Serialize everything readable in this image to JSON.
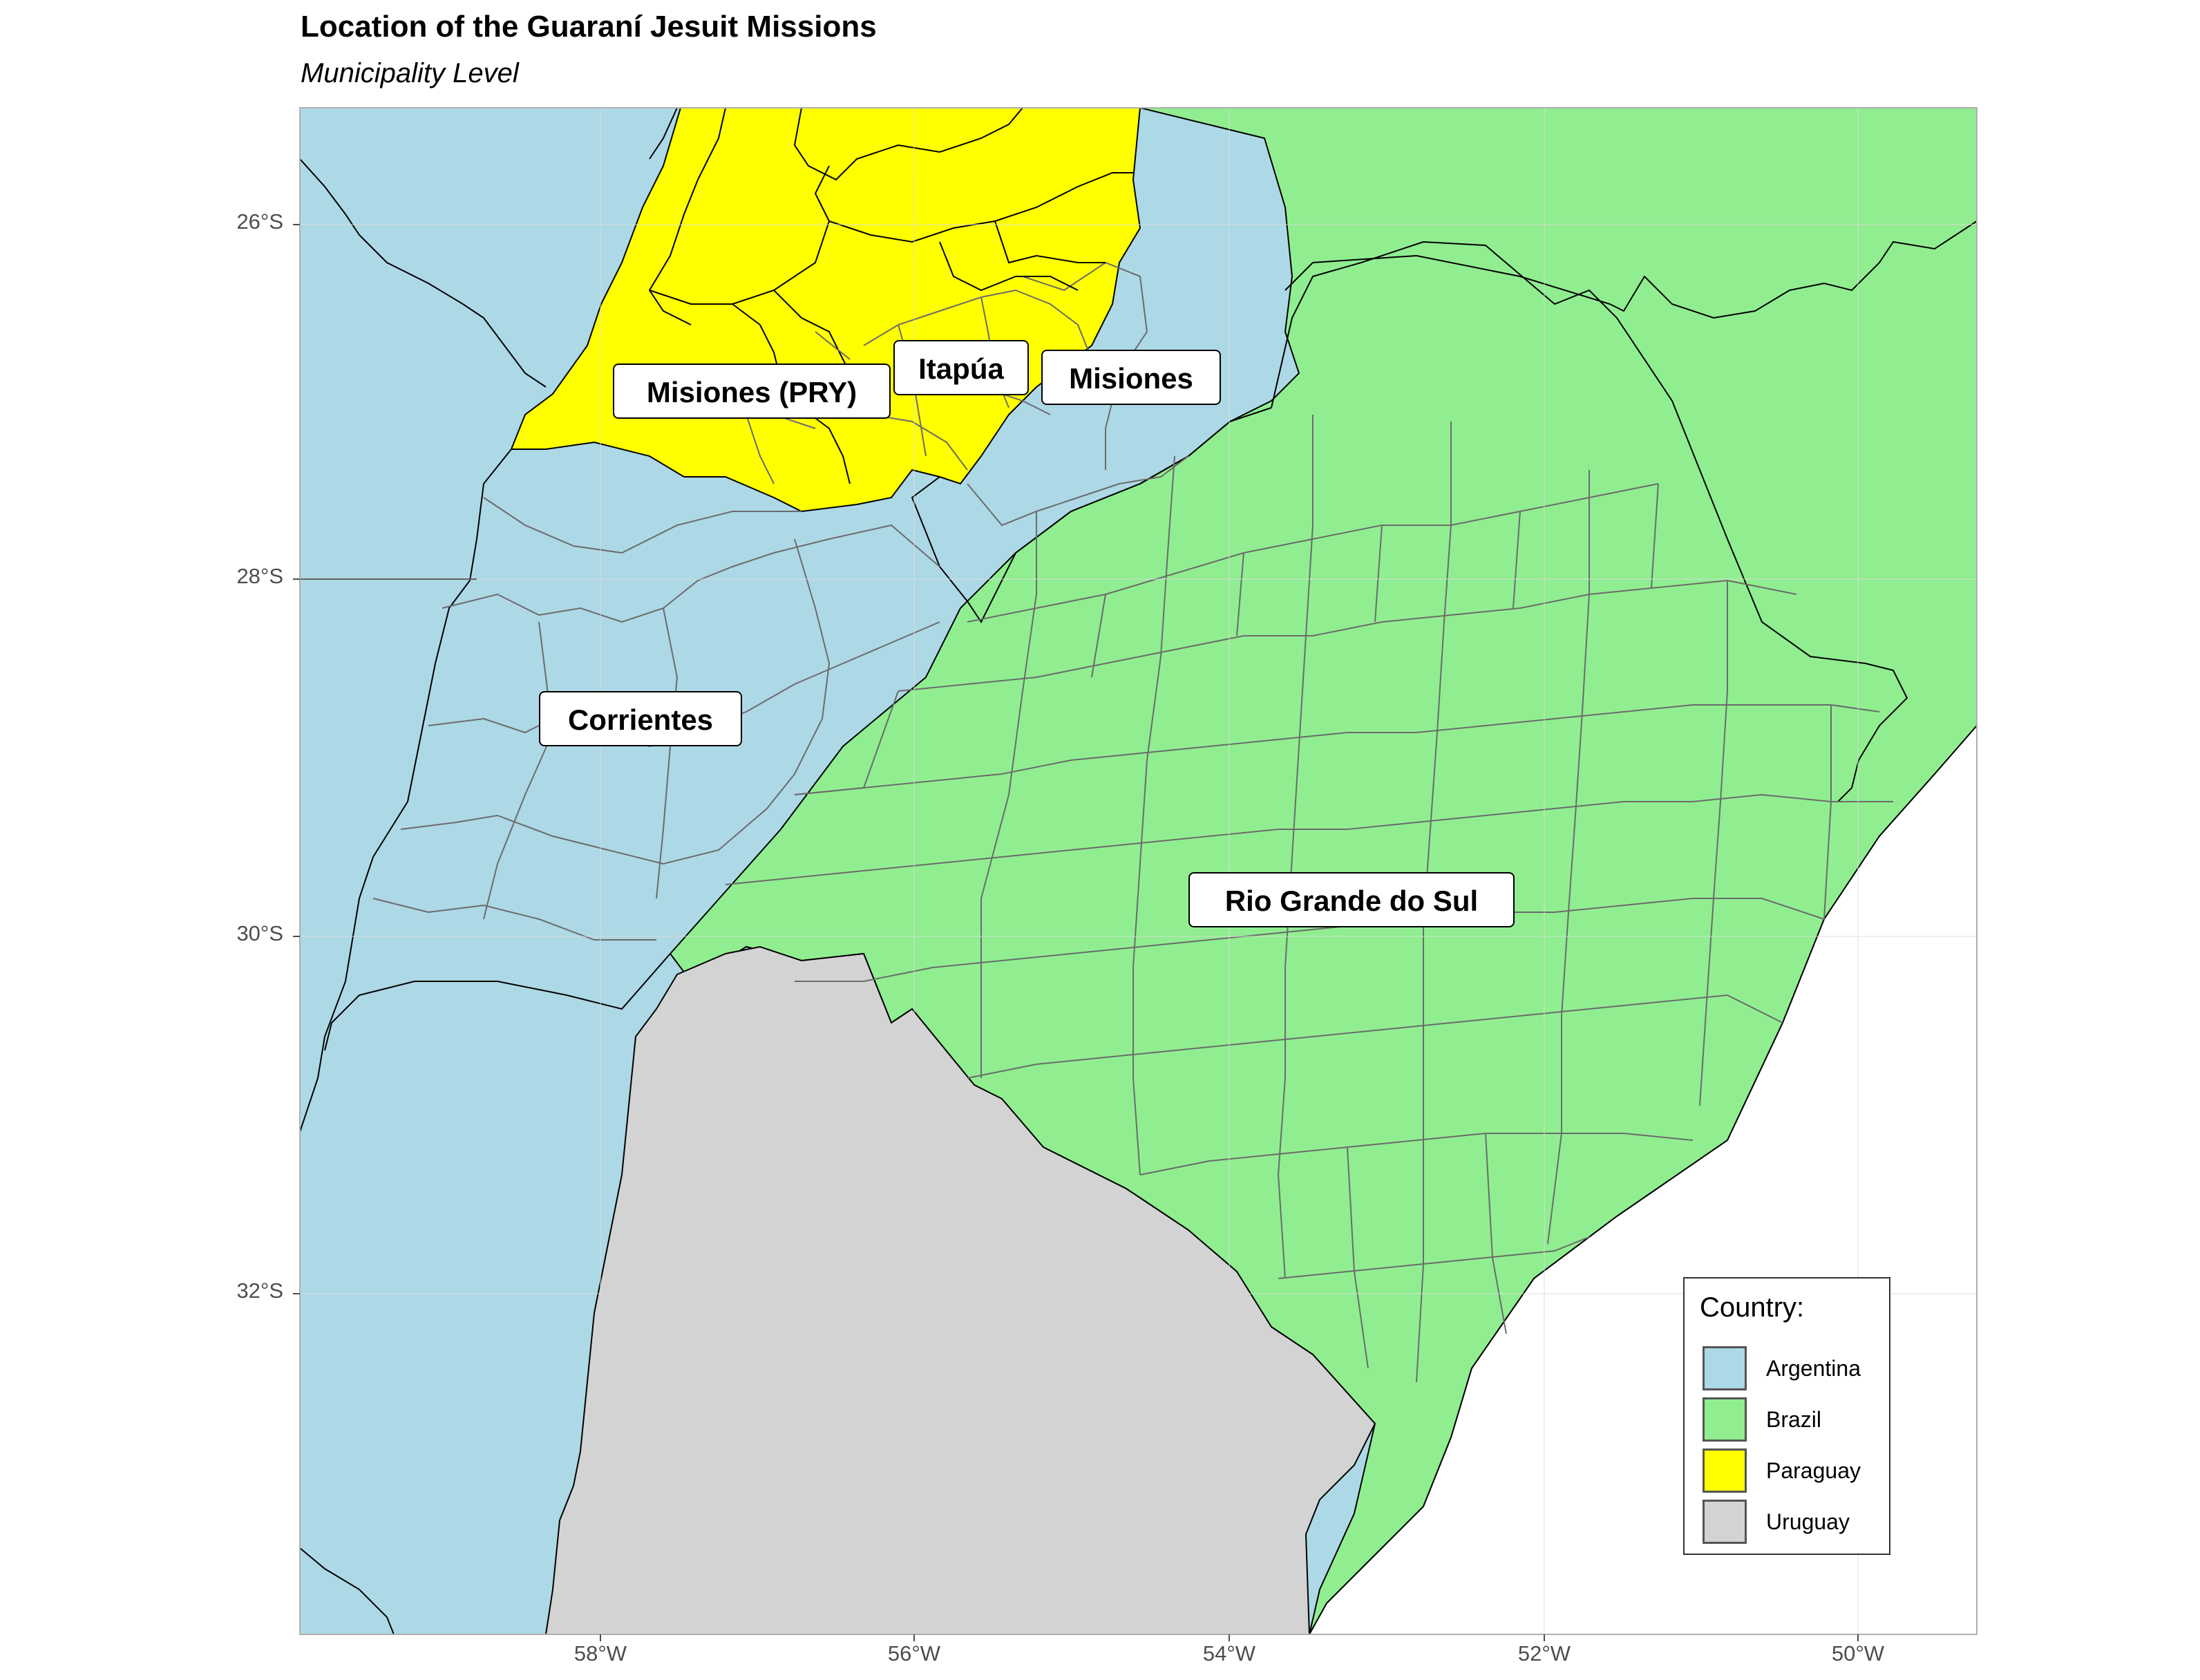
{
  "title": "Location of the Guaraní Jesuit Missions",
  "subtitle": "Municipality Level",
  "axes": {
    "y_ticks": [
      "26°S",
      "28°S",
      "30°S",
      "32°S"
    ],
    "x_ticks": [
      "58°W",
      "56°W",
      "54°W",
      "52°W",
      "50°W"
    ],
    "grid": true
  },
  "colors": {
    "argentina": "#ADD8E6",
    "brazil": "#90EE90",
    "paraguay": "#FFFF00",
    "uruguay": "#D3D3D3",
    "ocean": "#FFFFFF"
  },
  "region_labels": {
    "misiones_pry": "Misiones (PRY)",
    "itapua": "Itapúa",
    "misiones": "Misiones",
    "corrientes": "Corrientes",
    "rio_grande_do_sul": "Rio Grande do Sul"
  },
  "legend": {
    "title": "Country:",
    "items": [
      {
        "label": "Argentina",
        "color": "#ADD8E6"
      },
      {
        "label": "Brazil",
        "color": "#90EE90"
      },
      {
        "label": "Paraguay",
        "color": "#FFFF00"
      },
      {
        "label": "Uruguay",
        "color": "#D3D3D3"
      }
    ]
  }
}
